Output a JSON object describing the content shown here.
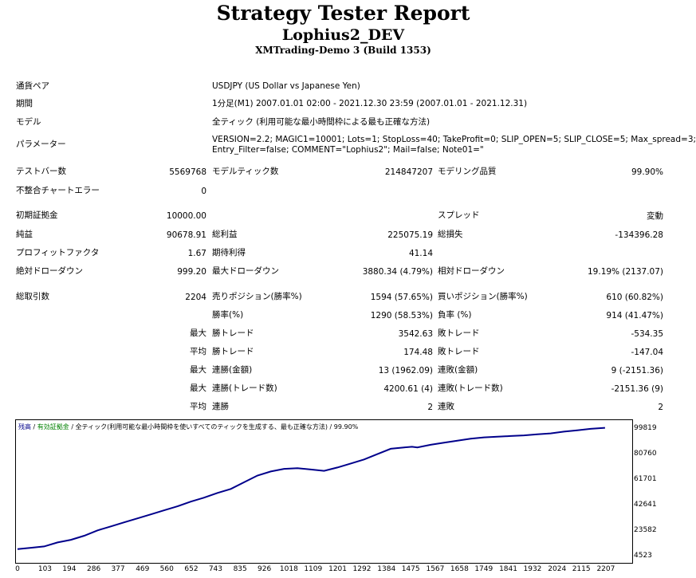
{
  "header": {
    "title": "Strategy Tester Report",
    "ea_name": "Lophius2_DEV",
    "server": "XMTrading-Demo 3 (Build 1353)"
  },
  "settings": {
    "symbol_label": "通貨ペア",
    "symbol_value": "USDJPY (US Dollar vs Japanese Yen)",
    "period_label": "期間",
    "period_value": "1分足(M1) 2007.01.01 02:00 - 2021.12.30 23:59 (2007.01.01 - 2021.12.31)",
    "model_label": "モデル",
    "model_value": "全ティック (利用可能な最小時間枠による最も正確な方法)",
    "params_label": "パラメーター",
    "params_line1": "VERSION=2.2; MAGIC1=10001; Lots=1; StopLoss=40; TakeProfit=0; SLIP_OPEN=5; SLIP_CLOSE=5; Max_spread=3;",
    "params_line2": "Entry_Filter=false; COMMENT=\"Lophius2\"; Mail=false; Note01=\""
  },
  "stats": {
    "bars_label": "テストバー数",
    "bars_value": "5569768",
    "ticks_label": "モデルティック数",
    "ticks_value": "214847207",
    "quality_label": "モデリング品質",
    "quality_value": "99.90%",
    "mismatch_label": "不整合チャートエラー",
    "mismatch_value": "0",
    "deposit_label": "初期証拠金",
    "deposit_value": "10000.00",
    "spread_label": "スプレッド",
    "spread_value": "変動",
    "net_label": "純益",
    "net_value": "90678.91",
    "gross_profit_label": "総利益",
    "gross_profit_value": "225075.19",
    "gross_loss_label": "総損失",
    "gross_loss_value": "-134396.28",
    "pf_label": "プロフィットファクタ",
    "pf_value": "1.67",
    "payoff_label": "期待利得",
    "payoff_value": "41.14",
    "abs_dd_label": "絶対ドローダウン",
    "abs_dd_value": "999.20",
    "max_dd_label": "最大ドローダウン",
    "max_dd_value": "3880.34 (4.79%)",
    "rel_dd_label": "相対ドローダウン",
    "rel_dd_value": "19.19% (2137.07)",
    "trades_label": "総取引数",
    "trades_value": "2204",
    "short_label": "売りポジション(勝率%)",
    "short_value": "1594 (57.65%)",
    "long_label": "買いポジション(勝率%)",
    "long_value": "610 (60.82%)",
    "win_rate_label": "勝率(%)",
    "win_rate_value": "1290 (58.53%)",
    "loss_rate_label": "負率 (%)",
    "loss_rate_value": "914 (41.47%)",
    "max_label": "最大",
    "avg_label": "平均",
    "win_trade_label": "勝トレード",
    "loss_trade_label": "敗トレード",
    "max_win_value": "3542.63",
    "max_loss_value": "-534.35",
    "avg_win_value": "174.48",
    "avg_loss_value": "-147.04",
    "cons_win_money_label": "連勝(金額)",
    "cons_win_money_value": "13 (1962.09)",
    "cons_loss_money_label": "連敗(金額)",
    "cons_loss_money_value": "9 (-2151.36)",
    "cons_win_trades_label": "連勝(トレード数)",
    "cons_win_trades_value": "4200.61 (4)",
    "cons_loss_trades_label": "連敗(トレード数)",
    "cons_loss_trades_value": "-2151.36 (9)",
    "avg_cons_win_label": "連勝",
    "avg_cons_win_value": "2",
    "avg_cons_loss_label": "連敗",
    "avg_cons_loss_value": "2"
  },
  "chart_data": {
    "type": "line",
    "title": "",
    "legend_balance": "残高",
    "legend_sep1": " / ",
    "legend_equity": "有効証拠金",
    "legend_sep2": " / ",
    "legend_model": "全ティック(利用可能な最小時間枠を使いすべてのティックを生成する、最も正確な方法)",
    "legend_quality": " / 99.90%",
    "line_color": "#00008b",
    "equity_color": "#008000",
    "xlabel": "",
    "ylabel": "",
    "xlim": [
      0,
      2300
    ],
    "ylim": [
      4523,
      104000
    ],
    "x_ticks": [
      0,
      103,
      194,
      286,
      377,
      469,
      560,
      652,
      743,
      835,
      926,
      1018,
      1109,
      1201,
      1292,
      1384,
      1475,
      1567,
      1658,
      1749,
      1841,
      1932,
      2024,
      2115,
      2207
    ],
    "y_ticks": [
      99819,
      80760,
      61701,
      42641,
      23582,
      4523
    ],
    "series": [
      {
        "x": [
          0,
          50,
          100,
          150,
          200,
          250,
          300,
          350,
          400,
          450,
          500,
          550,
          600,
          650,
          700,
          750,
          800,
          850,
          900,
          950,
          1000,
          1050,
          1100,
          1150,
          1200,
          1250,
          1300,
          1350,
          1400,
          1450,
          1480,
          1500,
          1550,
          1600,
          1650,
          1700,
          1750,
          1800,
          1850,
          1900,
          1950,
          2000,
          2050,
          2100,
          2150,
          2204
        ],
        "values": [
          10000,
          11000,
          12000,
          15000,
          17000,
          20000,
          24000,
          27000,
          30000,
          33000,
          36000,
          39000,
          42000,
          45500,
          48500,
          52000,
          55000,
          60000,
          65000,
          68000,
          70000,
          70500,
          69500,
          68500,
          71000,
          74000,
          77000,
          81000,
          85000,
          86000,
          86500,
          86000,
          88000,
          89500,
          91000,
          92500,
          93500,
          94000,
          94500,
          95000,
          95800,
          96500,
          97800,
          98800,
          99900,
          100679
        ]
      }
    ]
  }
}
